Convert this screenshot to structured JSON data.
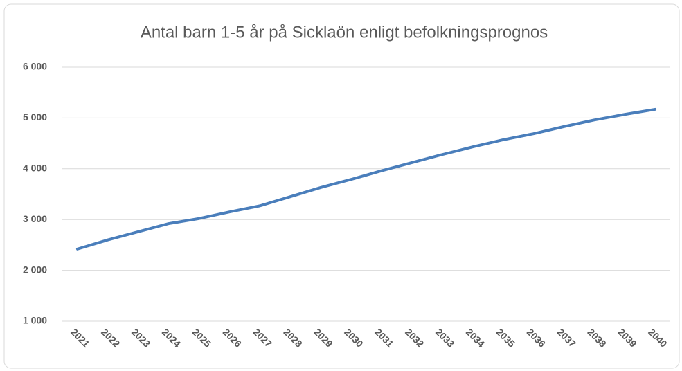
{
  "chart_data": {
    "type": "line",
    "title": "Antal barn 1-5 år på Sicklaön enligt befolkningsprognos",
    "categories": [
      "2021",
      "2022",
      "2023",
      "2024",
      "2025",
      "2026",
      "2027",
      "2028",
      "2029",
      "2030",
      "2031",
      "2032",
      "2033",
      "2034",
      "2035",
      "2036",
      "2037",
      "2038",
      "2039",
      "2040"
    ],
    "values": [
      2420,
      2600,
      2760,
      2920,
      3020,
      3150,
      3270,
      3450,
      3630,
      3790,
      3960,
      4120,
      4280,
      4430,
      4570,
      4690,
      4830,
      4960,
      5070,
      5170
    ],
    "color": "#4a7ebb",
    "ylim": [
      1000,
      6000
    ],
    "yticks": [
      {
        "value": 1000,
        "label": "1 000"
      },
      {
        "value": 2000,
        "label": "2 000"
      },
      {
        "value": 3000,
        "label": "3 000"
      },
      {
        "value": 4000,
        "label": "4 000"
      },
      {
        "value": 5000,
        "label": "5 000"
      },
      {
        "value": 6000,
        "label": "6 000"
      }
    ],
    "grid": true
  }
}
